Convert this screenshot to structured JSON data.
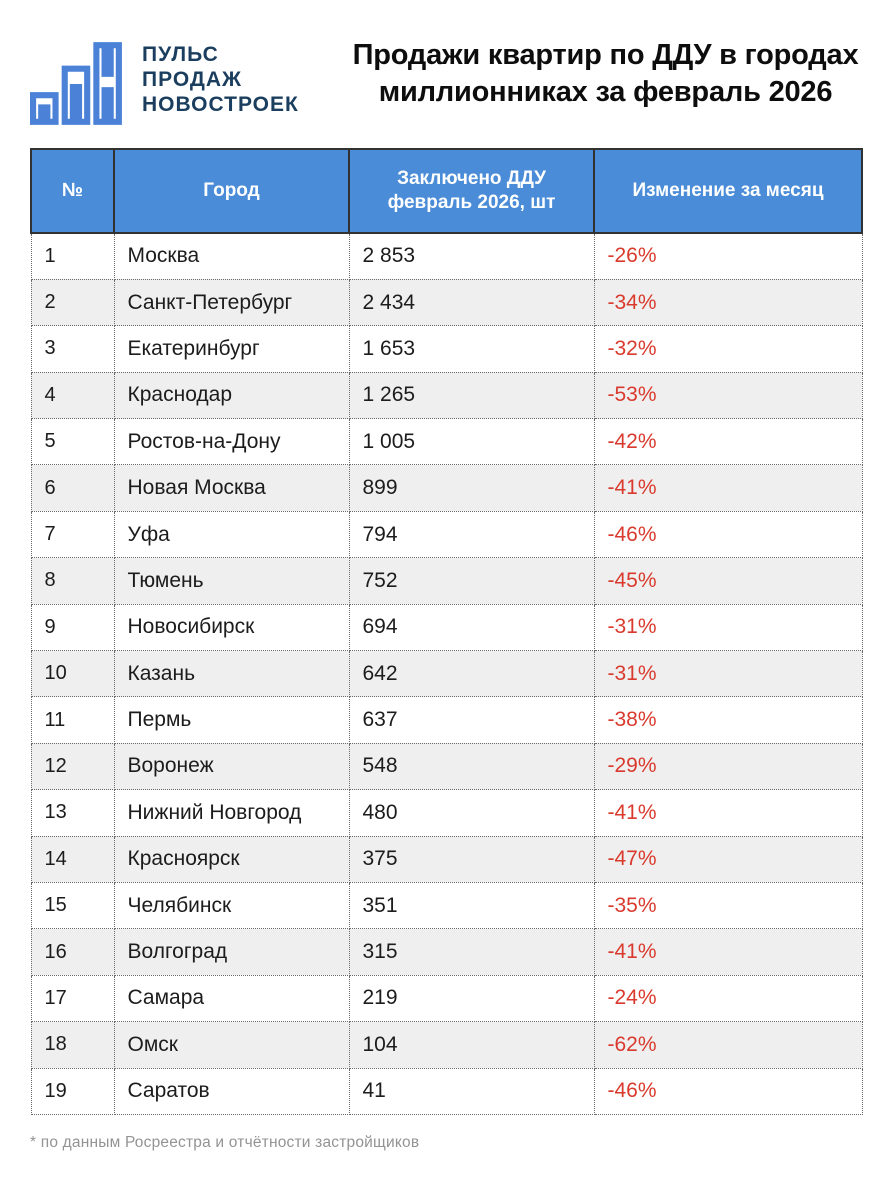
{
  "logo": {
    "icon": "bar-chart-logo-icon",
    "lines": [
      "ПУЛЬС",
      "ПРОДАЖ",
      "НОВОСТРОЕК"
    ]
  },
  "title": {
    "line1": "Продажи квартир по ДДУ в городах",
    "line2": "миллионниках за февраль 2026"
  },
  "table": {
    "header": {
      "num": "№",
      "city": "Город",
      "deals_line1": "Заключено ДДУ",
      "deals_line2": "февраль 2026, шт",
      "change": "Изменение за месяц"
    },
    "rows": [
      {
        "num": "1",
        "city": "Москва",
        "deals": "2 853",
        "change": "-26%"
      },
      {
        "num": "2",
        "city": "Санкт-Петербург",
        "deals": "2 434",
        "change": "-34%"
      },
      {
        "num": "3",
        "city": "Екатеринбург",
        "deals": "1 653",
        "change": "-32%"
      },
      {
        "num": "4",
        "city": "Краснодар",
        "deals": "1 265",
        "change": "-53%"
      },
      {
        "num": "5",
        "city": "Ростов-на-Дону",
        "deals": "1 005",
        "change": "-42%"
      },
      {
        "num": "6",
        "city": "Новая Москва",
        "deals": "899",
        "change": "-41%"
      },
      {
        "num": "7",
        "city": "Уфа",
        "deals": "794",
        "change": "-46%"
      },
      {
        "num": "8",
        "city": "Тюмень",
        "deals": "752",
        "change": "-45%"
      },
      {
        "num": "9",
        "city": "Новосибирск",
        "deals": "694",
        "change": "-31%"
      },
      {
        "num": "10",
        "city": "Казань",
        "deals": "642",
        "change": "-31%"
      },
      {
        "num": "11",
        "city": "Пермь",
        "deals": "637",
        "change": "-38%"
      },
      {
        "num": "12",
        "city": "Воронеж",
        "deals": "548",
        "change": "-29%"
      },
      {
        "num": "13",
        "city": "Нижний Новгород",
        "deals": "480",
        "change": "-41%"
      },
      {
        "num": "14",
        "city": "Красноярск",
        "deals": "375",
        "change": "-47%"
      },
      {
        "num": "15",
        "city": "Челябинск",
        "deals": "351",
        "change": "-35%"
      },
      {
        "num": "16",
        "city": "Волгоград",
        "deals": "315",
        "change": "-41%"
      },
      {
        "num": "17",
        "city": "Самара",
        "deals": "219",
        "change": "-24%"
      },
      {
        "num": "18",
        "city": "Омск",
        "deals": "104",
        "change": "-62%"
      },
      {
        "num": "19",
        "city": "Саратов",
        "deals": "41",
        "change": "-46%"
      }
    ]
  },
  "footnote": "* по данным Росреестра и отчётности застройщиков",
  "colors": {
    "header_blue": "#4a8cd7",
    "accent_red": "#d93a2d",
    "logo_navy": "#1b3e5f",
    "logo_icon_blue": "#4b82d8",
    "row_alt_gray": "#efefef",
    "header_border_dark": "#323232",
    "footnote_gray": "#939393"
  },
  "chart_data": {
    "type": "table",
    "title": "Продажи квартир по ДДУ в городах миллионниках за февраль 2026",
    "columns": [
      "№",
      "Город",
      "Заключено ДДУ февраль 2026, шт",
      "Изменение за месяц"
    ],
    "rows": [
      [
        1,
        "Москва",
        2853,
        "-26%"
      ],
      [
        2,
        "Санкт-Петербург",
        2434,
        "-34%"
      ],
      [
        3,
        "Екатеринбург",
        1653,
        "-32%"
      ],
      [
        4,
        "Краснодар",
        1265,
        "-53%"
      ],
      [
        5,
        "Ростов-на-Дону",
        1005,
        "-42%"
      ],
      [
        6,
        "Новая Москва",
        899,
        "-41%"
      ],
      [
        7,
        "Уфа",
        794,
        "-46%"
      ],
      [
        8,
        "Тюмень",
        752,
        "-45%"
      ],
      [
        9,
        "Новосибирск",
        694,
        "-31%"
      ],
      [
        10,
        "Казань",
        642,
        "-31%"
      ],
      [
        11,
        "Пермь",
        637,
        "-38%"
      ],
      [
        12,
        "Воронеж",
        548,
        "-29%"
      ],
      [
        13,
        "Нижний Новгород",
        480,
        "-41%"
      ],
      [
        14,
        "Красноярск",
        375,
        "-47%"
      ],
      [
        15,
        "Челябинск",
        351,
        "-35%"
      ],
      [
        16,
        "Волгоград",
        315,
        "-41%"
      ],
      [
        17,
        "Самара",
        219,
        "-24%"
      ],
      [
        18,
        "Омск",
        104,
        "-62%"
      ],
      [
        19,
        "Саратов",
        41,
        "-46%"
      ]
    ],
    "footnote": "* по данным Росреестра и отчётности застройщиков",
    "value_color": "#d93a2d",
    "header_background": "#4a8cd7"
  }
}
